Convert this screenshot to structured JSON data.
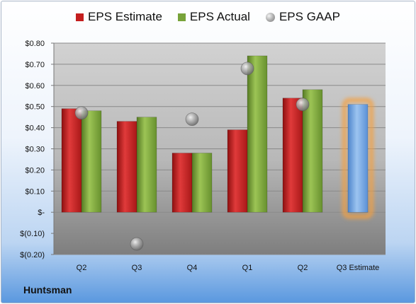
{
  "company": "Huntsman",
  "chart_data": {
    "type": "bar",
    "categories": [
      "Q2",
      "Q3",
      "Q4",
      "Q1",
      "Q2",
      "Q3 Estimate"
    ],
    "series": [
      {
        "name": "EPS Estimate",
        "type": "bar",
        "color": "#c41e1e",
        "values": [
          0.49,
          0.43,
          0.28,
          0.39,
          0.54,
          null
        ]
      },
      {
        "name": "EPS Actual",
        "type": "bar",
        "color": "#78a33a",
        "values": [
          0.48,
          0.45,
          0.28,
          0.74,
          0.58,
          null
        ]
      },
      {
        "name": "EPS GAAP",
        "type": "scatter",
        "color": "#9a9a9a",
        "values": [
          0.47,
          -0.15,
          0.44,
          0.68,
          0.51,
          null
        ]
      },
      {
        "name": "",
        "type": "bar",
        "color": "#6fa3e0",
        "values": [
          null,
          null,
          null,
          null,
          null,
          0.51
        ]
      }
    ],
    "ylim": [
      -0.2,
      0.8
    ],
    "ytick_labels": [
      "$0.80",
      "$0.70",
      "$0.60",
      "$0.50",
      "$0.40",
      "$0.30",
      "$0.20",
      "$0.10",
      "$-",
      "$(0.10)",
      "$(0.20)"
    ],
    "legend_position": "top",
    "grid": true
  }
}
